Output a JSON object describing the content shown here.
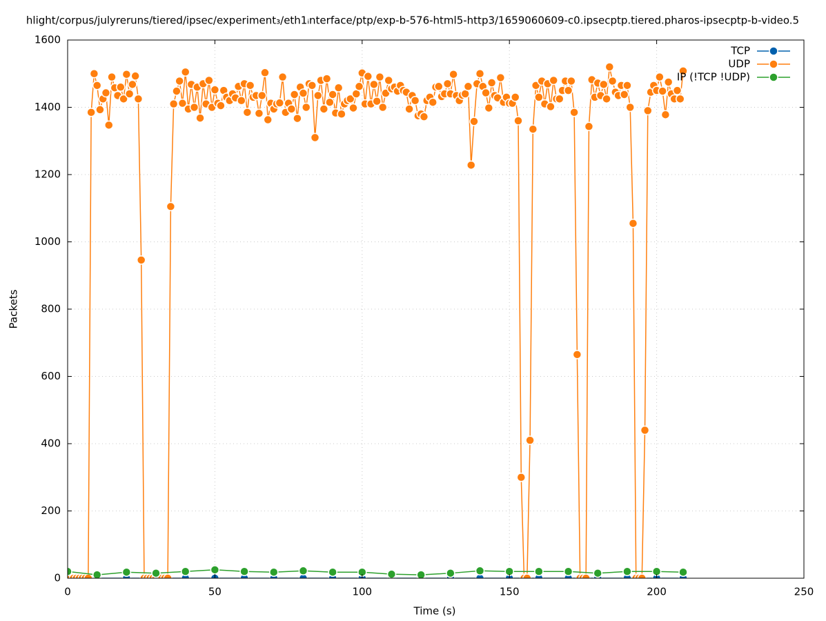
{
  "chart_data": {
    "type": "line",
    "title": "hlight/corpus/julyreruns/tiered/ipsec/experiment₃/eth1ᵢnterface/ptp/exp-b-576-html5-http3/1659060609-c0.ipsecptp.tiered.pharos-ipsecptp-b-video.5",
    "xlabel": "Time (s)",
    "ylabel": "Packets",
    "xlim": [
      0,
      250
    ],
    "xticks": [
      0,
      50,
      100,
      150,
      200,
      250
    ],
    "ylim": [
      0,
      1600
    ],
    "yticks": [
      0,
      200,
      400,
      600,
      800,
      1000,
      1200,
      1400,
      1600
    ],
    "grid": true,
    "legend": "top-right",
    "series": [
      {
        "name": "TCP",
        "color": "#0060ad",
        "x": [
          0,
          10,
          20,
          30,
          40,
          50,
          60,
          70,
          80,
          90,
          100,
          110,
          120,
          130,
          140,
          150,
          160,
          170,
          180,
          190,
          200,
          209
        ],
        "values": [
          0,
          0,
          0,
          0,
          0,
          0,
          0,
          0,
          0,
          0,
          0,
          0,
          0,
          0,
          0,
          0,
          0,
          0,
          0,
          0,
          0,
          0
        ]
      },
      {
        "name": "UDP",
        "color": "#ff7f0e",
        "x": [
          0,
          1,
          2,
          3,
          4,
          5,
          6,
          7,
          8,
          9,
          10,
          11,
          12,
          13,
          14,
          15,
          16,
          17,
          18,
          19,
          20,
          21,
          22,
          23,
          24,
          25,
          26,
          27,
          28,
          29,
          30,
          31,
          32,
          33,
          34,
          35,
          36,
          37,
          38,
          39,
          40,
          41,
          42,
          43,
          44,
          45,
          46,
          47,
          48,
          49,
          50,
          51,
          52,
          53,
          54,
          55,
          56,
          57,
          58,
          59,
          60,
          61,
          62,
          63,
          64,
          65,
          66,
          67,
          68,
          69,
          70,
          71,
          72,
          73,
          74,
          75,
          76,
          77,
          78,
          79,
          80,
          81,
          82,
          83,
          84,
          85,
          86,
          87,
          88,
          89,
          90,
          91,
          92,
          93,
          94,
          95,
          96,
          97,
          98,
          99,
          100,
          101,
          102,
          103,
          104,
          105,
          106,
          107,
          108,
          109,
          110,
          111,
          112,
          113,
          114,
          115,
          116,
          117,
          118,
          119,
          120,
          121,
          122,
          123,
          124,
          125,
          126,
          127,
          128,
          129,
          130,
          131,
          132,
          133,
          134,
          135,
          136,
          137,
          138,
          139,
          140,
          141,
          142,
          143,
          144,
          145,
          146,
          147,
          148,
          149,
          150,
          151,
          152,
          153,
          154,
          155,
          156,
          157,
          158,
          159,
          160,
          161,
          162,
          163,
          164,
          165,
          166,
          167,
          168,
          169,
          170,
          171,
          172,
          173,
          174,
          175,
          176,
          177,
          178,
          179,
          180,
          181,
          182,
          183,
          184,
          185,
          186,
          187,
          188,
          189,
          190,
          191,
          192,
          193,
          194,
          195,
          196,
          197,
          198,
          199,
          200,
          201,
          202,
          203,
          204,
          205,
          206,
          207,
          208,
          209
        ],
        "values": [
          0,
          0,
          0,
          0,
          0,
          0,
          0,
          0,
          1385,
          1500,
          1465,
          1393,
          1425,
          1443,
          1347,
          1490,
          1458,
          1435,
          1460,
          1425,
          1498,
          1440,
          1468,
          1493,
          1425,
          946,
          0,
          0,
          0,
          0,
          0,
          0,
          0,
          0,
          0,
          1105,
          1410,
          1448,
          1478,
          1412,
          1505,
          1395,
          1468,
          1400,
          1460,
          1368,
          1470,
          1410,
          1480,
          1400,
          1452,
          1412,
          1405,
          1450,
          1430,
          1420,
          1440,
          1428,
          1462,
          1420,
          1470,
          1385,
          1465,
          1430,
          1435,
          1382,
          1435,
          1503,
          1363,
          1412,
          1395,
          1410,
          1413,
          1490,
          1385,
          1412,
          1395,
          1438,
          1367,
          1460,
          1442,
          1400,
          1470,
          1465,
          1310,
          1435,
          1480,
          1395,
          1485,
          1415,
          1438,
          1383,
          1458,
          1380,
          1410,
          1420,
          1425,
          1398,
          1440,
          1462,
          1502,
          1410,
          1492,
          1410,
          1468,
          1418,
          1490,
          1400,
          1442,
          1480,
          1455,
          1460,
          1448,
          1465,
          1450,
          1445,
          1395,
          1435,
          1420,
          1375,
          1380,
          1372,
          1420,
          1430,
          1415,
          1460,
          1462,
          1432,
          1440,
          1470,
          1440,
          1498,
          1435,
          1420,
          1436,
          1440,
          1462,
          1228,
          1358,
          1470,
          1500,
          1462,
          1443,
          1398,
          1473,
          1435,
          1428,
          1488,
          1415,
          1430,
          1412,
          1412,
          1430,
          1360,
          300,
          0,
          0,
          410,
          1335,
          1465,
          1430,
          1478,
          1410,
          1470,
          1402,
          1480,
          1425,
          1425,
          1450,
          1478,
          1450,
          1478,
          1385,
          665,
          0,
          0,
          0,
          1343,
          1482,
          1430,
          1472,
          1435,
          1468,
          1425,
          1520,
          1478,
          1445,
          1435,
          1465,
          1438,
          1465,
          1400,
          1055,
          0,
          0,
          0,
          440,
          1390,
          1445,
          1465,
          1450,
          1490,
          1448,
          1378,
          1475,
          1440,
          1425,
          1450,
          1425,
          1508
        ]
      },
      {
        "name": "IP (!TCP  !UDP)",
        "color": "#2ca02c",
        "x": [
          0,
          10,
          20,
          30,
          40,
          50,
          60,
          70,
          80,
          90,
          100,
          110,
          120,
          130,
          140,
          150,
          160,
          170,
          180,
          190,
          200,
          209
        ],
        "values": [
          20,
          10,
          18,
          15,
          20,
          25,
          20,
          18,
          22,
          18,
          18,
          12,
          10,
          15,
          22,
          20,
          20,
          20,
          15,
          20,
          20,
          18
        ]
      }
    ]
  }
}
